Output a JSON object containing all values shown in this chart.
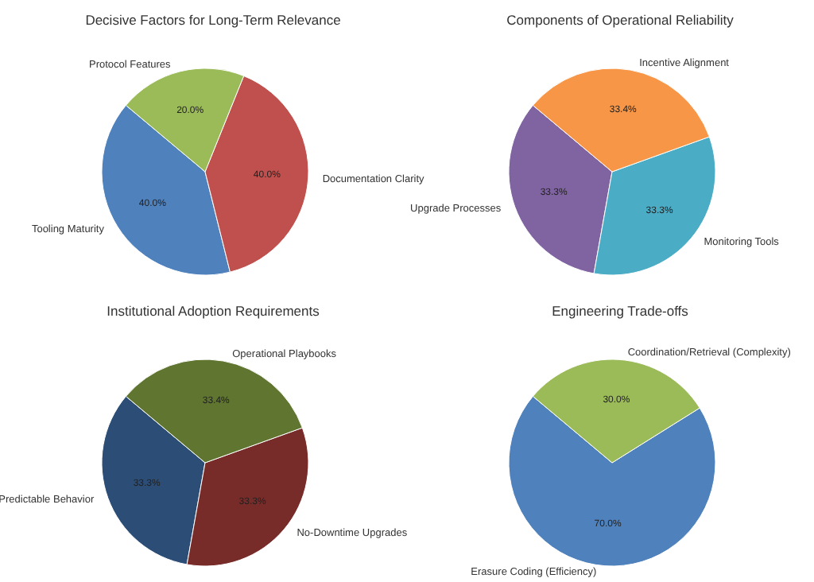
{
  "chart_data": [
    {
      "type": "pie",
      "title": "Decisive Factors for Long-Term Relevance",
      "categories": [
        "Tooling Maturity",
        "Documentation Clarity",
        "Protocol Features"
      ],
      "values": [
        40,
        40,
        20
      ],
      "value_labels": [
        "40.0%",
        "40.0%",
        "20.0%"
      ],
      "colors": [
        "#4f81bd",
        "#c0504d",
        "#9bbb59"
      ],
      "legend": false
    },
    {
      "type": "pie",
      "title": "Components of Operational Reliability",
      "categories": [
        "Upgrade Processes",
        "Monitoring Tools",
        "Incentive Alignment"
      ],
      "values": [
        33.3,
        33.3,
        33.4
      ],
      "value_labels": [
        "33.3%",
        "33.3%",
        "33.4%"
      ],
      "colors": [
        "#8064a2",
        "#4bacc6",
        "#f79646"
      ],
      "legend": false
    },
    {
      "type": "pie",
      "title": "Institutional Adoption Requirements",
      "categories": [
        "Predictable Behavior",
        "No-Downtime Upgrades",
        "Operational Playbooks"
      ],
      "values": [
        33.3,
        33.3,
        33.4
      ],
      "value_labels": [
        "33.3%",
        "33.3%",
        "33.4%"
      ],
      "colors": [
        "#2c4d75",
        "#772c2a",
        "#5f7530"
      ],
      "legend": false
    },
    {
      "type": "pie",
      "title": "Engineering Trade-offs",
      "categories": [
        "Erasure Coding (Efficiency)",
        "Coordination/Retrieval (Complexity)"
      ],
      "values": [
        70,
        30
      ],
      "value_labels": [
        "70.0%",
        "30.0%"
      ],
      "colors": [
        "#4f81bd",
        "#9bbb59"
      ],
      "legend": false
    }
  ]
}
